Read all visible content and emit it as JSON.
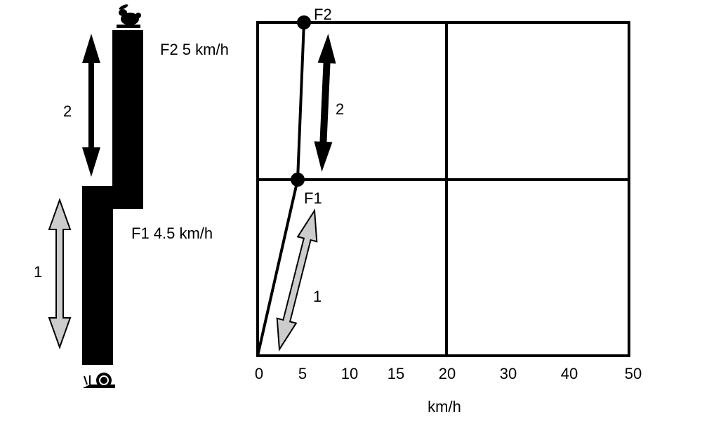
{
  "left_panel": {
    "upper_arrow_label": "2",
    "lower_arrow_label": "1",
    "f2_label": "F2 5 km/h",
    "f1_label": "F1 4.5 km/h",
    "top_icon": "rabbit-icon",
    "bottom_icon": "snail-icon"
  },
  "chart": {
    "x_tick_labels": [
      "0",
      "5",
      "10",
      "15",
      "20",
      "30",
      "40",
      "50"
    ],
    "x_axis_label": "km/h",
    "point_f1_label": "F1",
    "point_f2_label": "F2",
    "upper_arrow_label": "2",
    "lower_arrow_label": "1"
  },
  "colors": {
    "ink": "#000000",
    "gray_arrow": "#cccccc"
  }
}
